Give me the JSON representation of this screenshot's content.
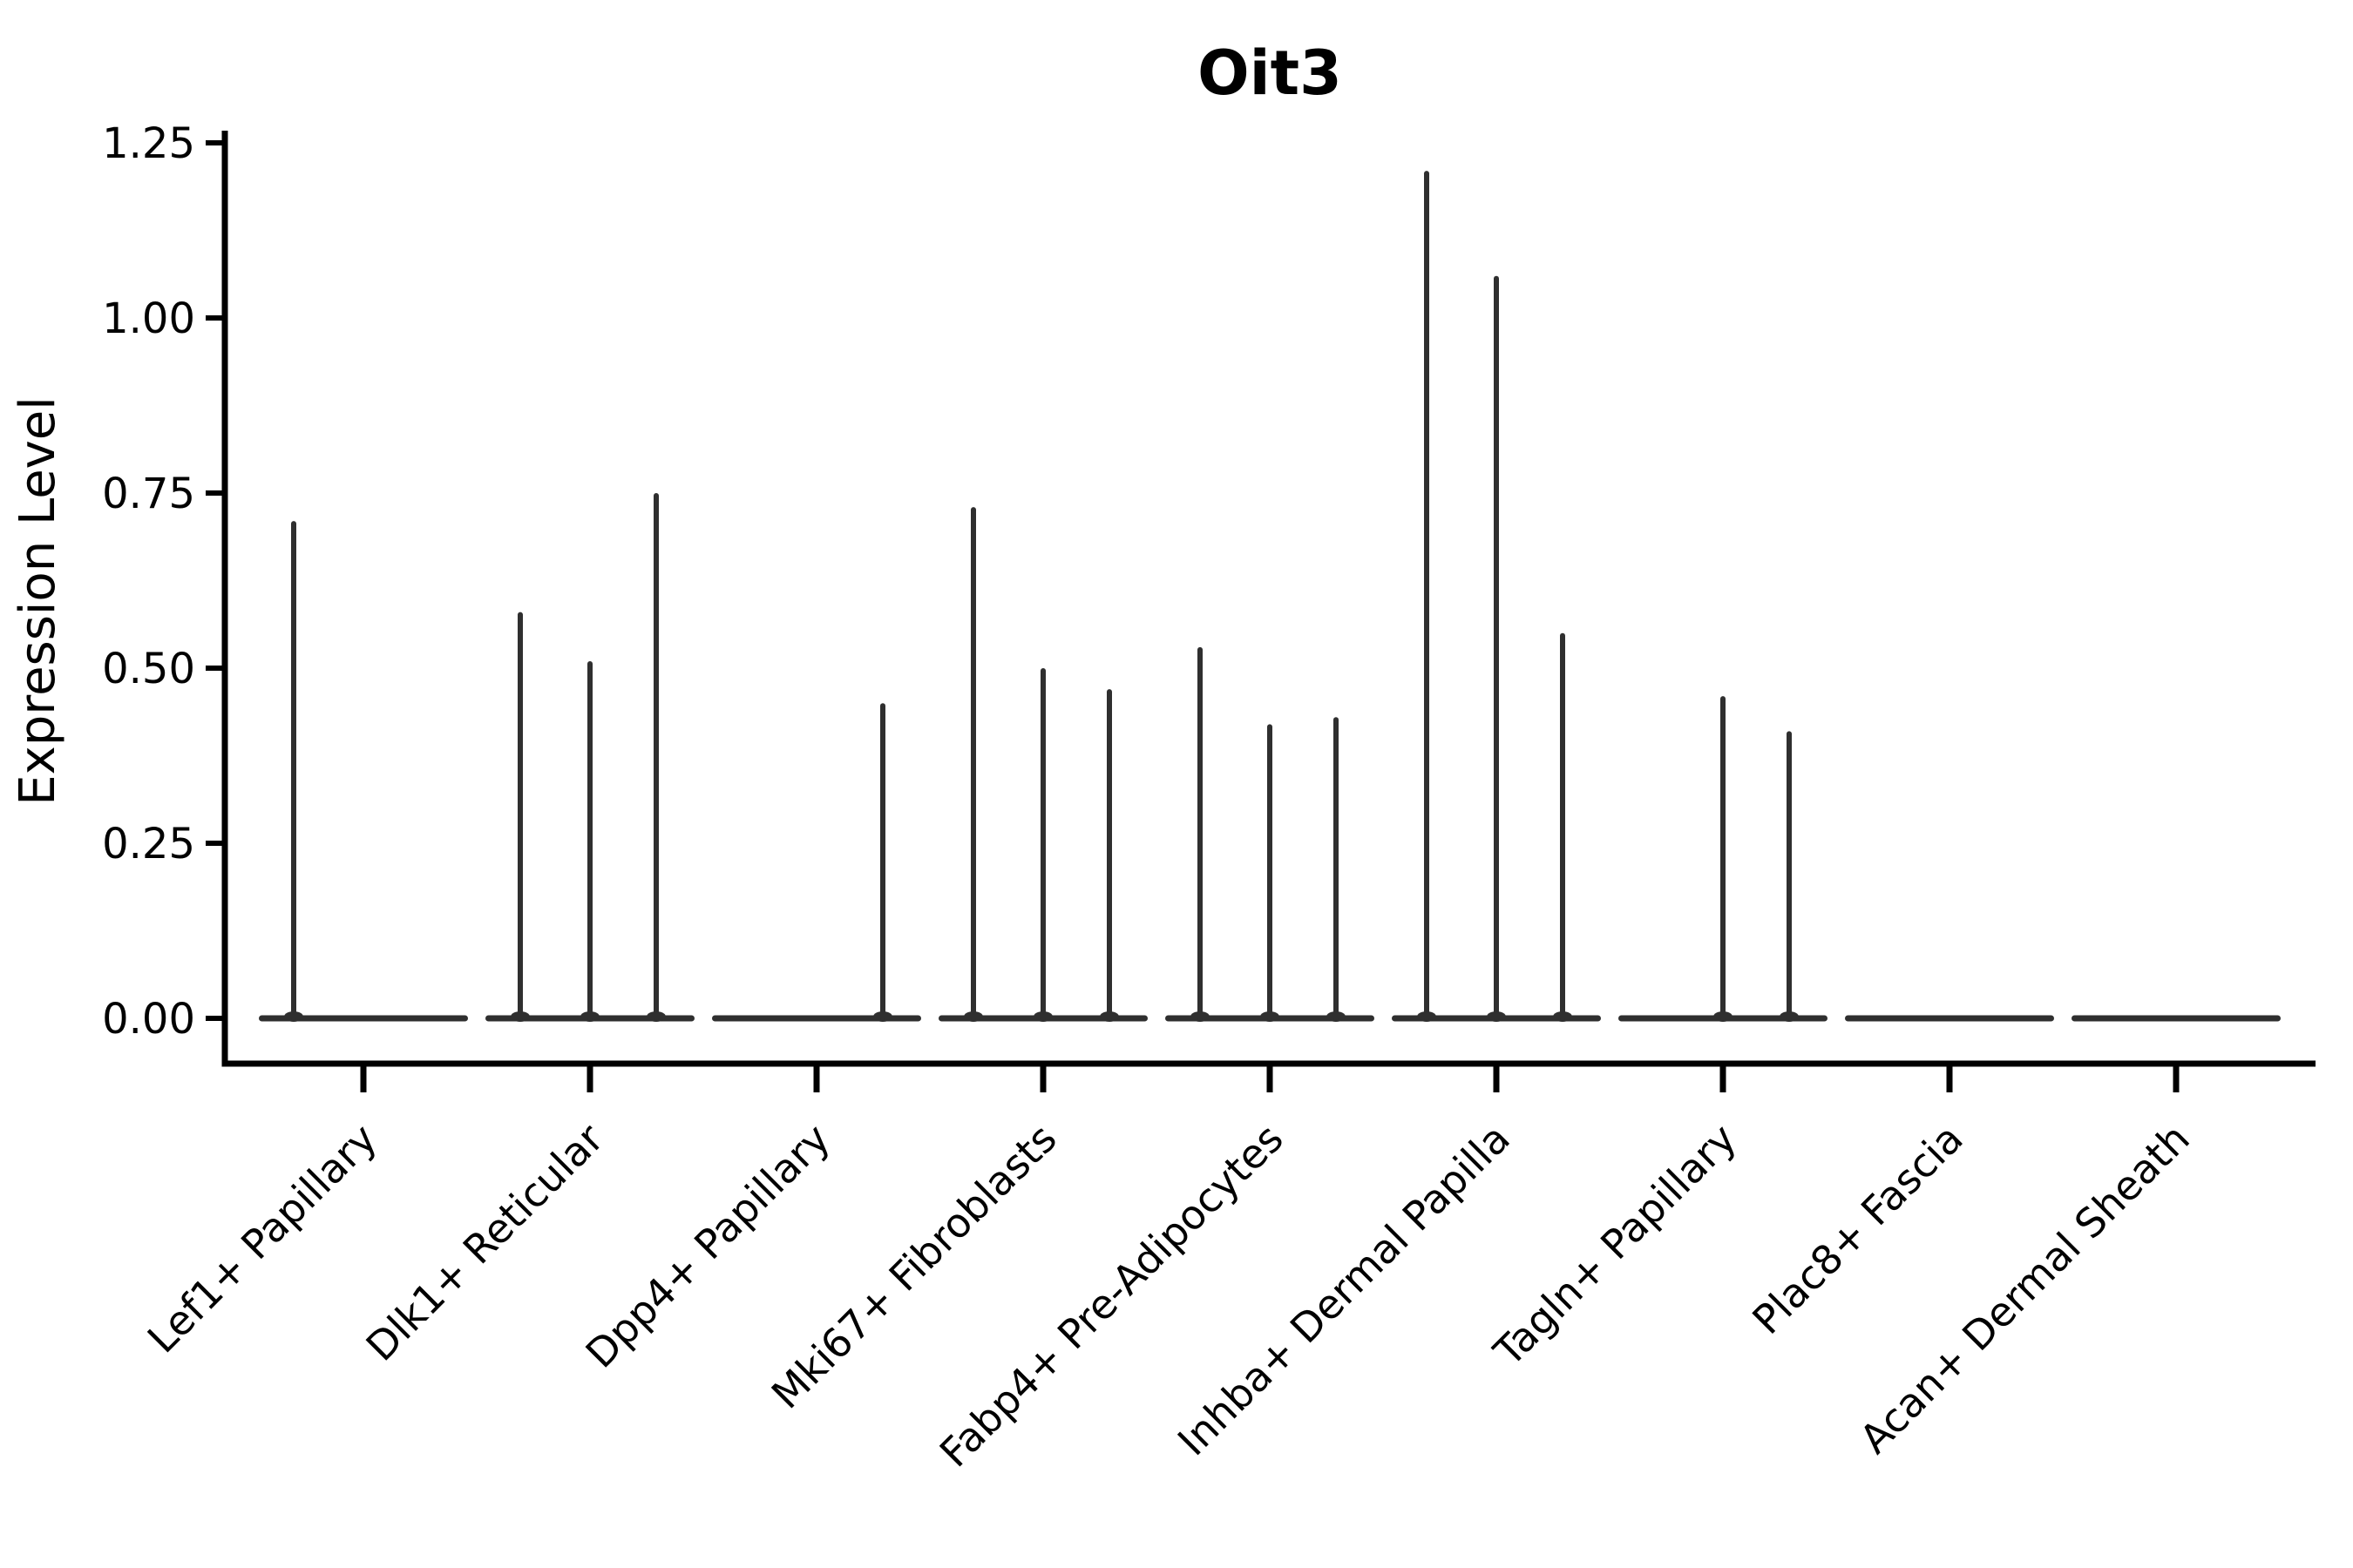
{
  "chart_data": {
    "type": "violin",
    "title": "Oit3",
    "ylabel": "Expression Level",
    "xlabel": "",
    "ylim": [
      0,
      1.25
    ],
    "yticks": [
      0.0,
      0.25,
      0.5,
      0.75,
      1.0,
      1.25
    ],
    "ytick_labels": [
      "0.00",
      "0.25",
      "0.50",
      "0.75",
      "1.00",
      "1.25"
    ],
    "grid": false,
    "legend": "none",
    "sub_violins_per_category": 3,
    "categories": [
      "Lef1+ Papillary",
      "Dlk1+ Reticular",
      "Dpp4+ Papillary",
      "Mki67+ Fibroblasts",
      "Fabp4+ Pre-Adipocytes",
      "Inhba+ Dermal Papilla",
      "Tagln+ Papillary",
      "Plac8+ Fascia",
      "Acan+ Dermal Sheath"
    ],
    "series": [
      {
        "category": "Lef1+ Papillary",
        "peak_heights": [
          0.71,
          0,
          0
        ]
      },
      {
        "category": "Dlk1+ Reticular",
        "peak_heights": [
          0.58,
          0.51,
          0.75
        ]
      },
      {
        "category": "Dpp4+ Papillary",
        "peak_heights": [
          0,
          0,
          0.45
        ]
      },
      {
        "category": "Mki67+ Fibroblasts",
        "peak_heights": [
          0.73,
          0.5,
          0.47
        ]
      },
      {
        "category": "Fabp4+ Pre-Adipocytes",
        "peak_heights": [
          0.53,
          0.42,
          0.43
        ]
      },
      {
        "category": "Inhba+ Dermal Papilla",
        "peak_heights": [
          1.21,
          1.06,
          0.55
        ]
      },
      {
        "category": "Tagln+ Papillary",
        "peak_heights": [
          0,
          0.46,
          0.41
        ]
      },
      {
        "category": "Plac8+ Fascia",
        "peak_heights": [
          0,
          0,
          0
        ]
      },
      {
        "category": "Acan+ Dermal Sheath",
        "peak_heights": [
          0,
          0,
          0
        ]
      }
    ],
    "colors": {
      "violin_line": "#2f2f2f",
      "axis": "#000000",
      "text": "#000000",
      "background": "#ffffff"
    }
  }
}
